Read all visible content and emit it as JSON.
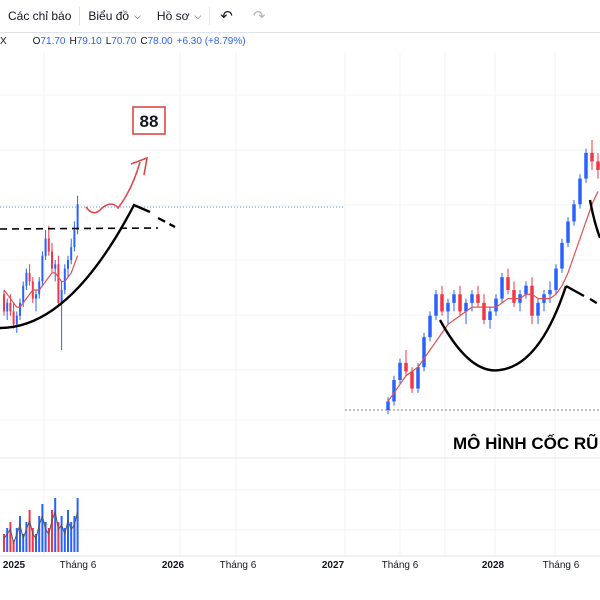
{
  "toolbar": {
    "indicators_label": "Các chỉ báo",
    "chart_type_label": "Biểu đồ",
    "profile_label": "Hồ sơ",
    "undo_icon": "undo-icon",
    "redo_icon": "redo-icon"
  },
  "legend": {
    "close_marker": "X",
    "open_label": "O",
    "open_value": "71.70",
    "high_label": "H",
    "high_value": "79.10",
    "low_label": "L",
    "low_value": "70.70",
    "close_label": "C",
    "close_value": "78.00",
    "change": "+6.30 (+8.79%)"
  },
  "annotations": {
    "number_box": "88",
    "pattern_title": "MÔ HÌNH CỐC RŨ"
  },
  "colors": {
    "up": "#2962ff",
    "down": "#f23645",
    "ma": "#e05050",
    "annotation_red": "#e04848",
    "pattern_line": "#000000"
  },
  "chart_data": {
    "type": "candlestick",
    "x_ticks": [
      {
        "label": "2025",
        "bold": true
      },
      {
        "label": "Tháng 6",
        "bold": false
      },
      {
        "label": "2026",
        "bold": true
      },
      {
        "label": "Tháng 6",
        "bold": false
      },
      {
        "label": "2027",
        "bold": true
      },
      {
        "label": "Tháng 6",
        "bold": false
      },
      {
        "label": "2028",
        "bold": true
      },
      {
        "label": "Tháng 6",
        "bold": false
      }
    ],
    "price_range": [
      30,
      100
    ],
    "resistance_level": 78,
    "left_segment": {
      "ohlc": [
        [
          57,
          58,
          52,
          53
        ],
        [
          53,
          56,
          51,
          55
        ],
        [
          55,
          57,
          52,
          53
        ],
        [
          53,
          55,
          49,
          50
        ],
        [
          50,
          53,
          48,
          52
        ],
        [
          52,
          56,
          51,
          55
        ],
        [
          55,
          60,
          54,
          59
        ],
        [
          59,
          63,
          58,
          62
        ],
        [
          62,
          64,
          59,
          60
        ],
        [
          60,
          61,
          55,
          56
        ],
        [
          56,
          58,
          53,
          57
        ],
        [
          57,
          61,
          56,
          60
        ],
        [
          60,
          67,
          59,
          66
        ],
        [
          66,
          72,
          65,
          70
        ],
        [
          70,
          73,
          66,
          67
        ],
        [
          67,
          69,
          62,
          63
        ],
        [
          63,
          65,
          60,
          64
        ],
        [
          64,
          66,
          54,
          55
        ],
        [
          55,
          60,
          44,
          58
        ],
        [
          58,
          64,
          57,
          63
        ],
        [
          63,
          66,
          61,
          65
        ],
        [
          65,
          70,
          64,
          68
        ],
        [
          68,
          74,
          67,
          72
        ],
        [
          72,
          80,
          71,
          78
        ]
      ],
      "ma": [
        58,
        57,
        56,
        55,
        54,
        54,
        55,
        56,
        57,
        58,
        58,
        58,
        59,
        60,
        61,
        62,
        62,
        61,
        60,
        60,
        61,
        62,
        64,
        66
      ],
      "volume": [
        3,
        4,
        5,
        2,
        4,
        6,
        3,
        5,
        7,
        4,
        3,
        6,
        8,
        5,
        4,
        7,
        9,
        5,
        6,
        4,
        7,
        5,
        6,
        9
      ]
    },
    "right_segment": {
      "ohlc": [
        [
          30,
          33,
          29,
          32
        ],
        [
          32,
          38,
          31,
          37
        ],
        [
          37,
          42,
          36,
          41
        ],
        [
          41,
          44,
          38,
          39
        ],
        [
          39,
          40,
          34,
          35
        ],
        [
          35,
          41,
          34,
          40
        ],
        [
          40,
          48,
          39,
          47
        ],
        [
          47,
          53,
          46,
          52
        ],
        [
          52,
          58,
          51,
          57
        ],
        [
          57,
          59,
          52,
          53
        ],
        [
          53,
          56,
          50,
          55
        ],
        [
          55,
          58,
          53,
          57
        ],
        [
          57,
          59,
          52,
          53
        ],
        [
          53,
          56,
          50,
          55
        ],
        [
          55,
          58,
          53,
          57
        ],
        [
          57,
          59,
          54,
          55
        ],
        [
          55,
          57,
          50,
          51
        ],
        [
          51,
          54,
          49,
          53
        ],
        [
          53,
          57,
          52,
          56
        ],
        [
          56,
          62,
          55,
          61
        ],
        [
          61,
          63,
          57,
          58
        ],
        [
          58,
          60,
          54,
          55
        ],
        [
          55,
          58,
          53,
          57
        ],
        [
          57,
          60,
          56,
          59
        ],
        [
          59,
          61,
          50,
          52
        ],
        [
          52,
          56,
          50,
          55
        ],
        [
          55,
          58,
          53,
          57
        ],
        [
          57,
          60,
          55,
          58
        ],
        [
          58,
          64,
          57,
          63
        ],
        [
          63,
          70,
          62,
          69
        ],
        [
          69,
          75,
          68,
          74
        ],
        [
          74,
          79,
          73,
          78
        ],
        [
          78,
          85,
          77,
          84
        ],
        [
          84,
          91,
          83,
          90
        ],
        [
          90,
          93,
          86,
          88
        ],
        [
          88,
          90,
          84,
          86
        ]
      ],
      "ma": [
        32,
        34,
        36,
        38,
        39,
        40,
        42,
        44,
        46,
        48,
        50,
        51,
        52,
        53,
        54,
        54,
        54,
        54,
        54,
        55,
        56,
        56,
        56,
        57,
        57,
        56,
        56,
        56,
        57,
        59,
        62,
        66,
        70,
        74,
        78,
        81
      ]
    }
  }
}
